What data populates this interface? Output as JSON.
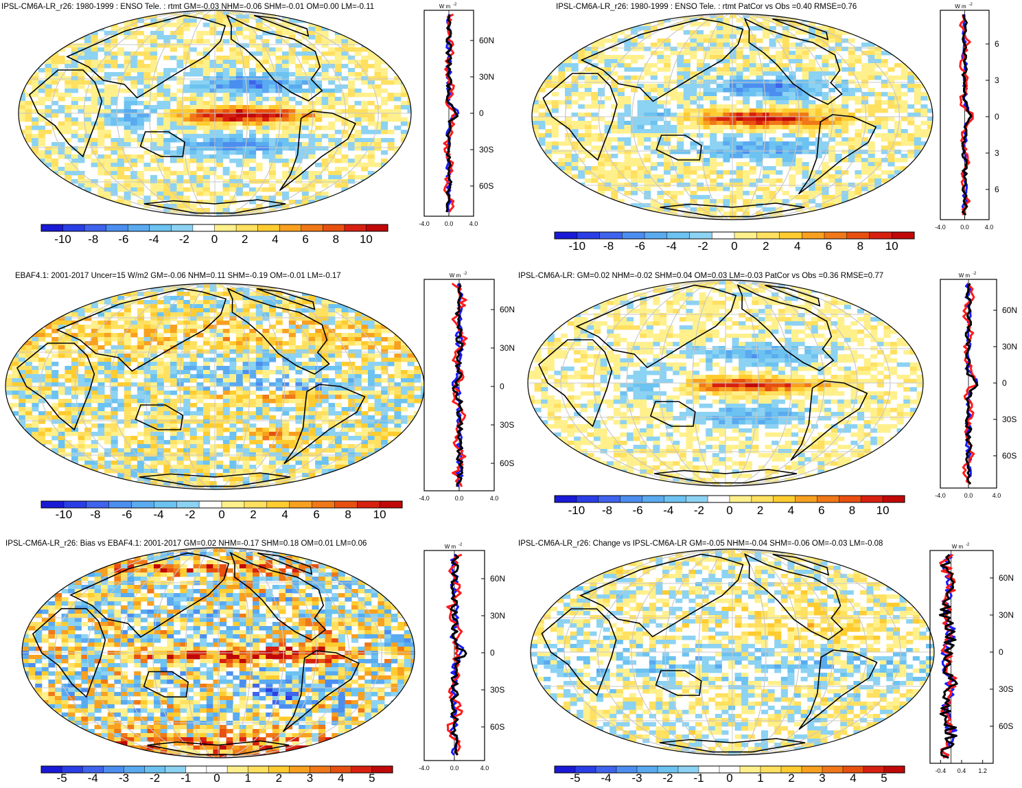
{
  "palette10": [
    "#1a1ad6",
    "#2a3ee6",
    "#3f63ec",
    "#4c8ef0",
    "#5aaaf0",
    "#6cc2f0",
    "#8cd2f2",
    "#ffffff",
    "#fff08c",
    "#ffe060",
    "#ffcc30",
    "#f8a020",
    "#f07818",
    "#e85010",
    "#d82010",
    "#c00808"
  ],
  "palette5": [
    "#1a1ad6",
    "#2a3ee6",
    "#3f63ec",
    "#4c8ef0",
    "#5aaaf0",
    "#6cc2f0",
    "#8cd2f2",
    "#ffffff",
    "#ffffff",
    "#fff08c",
    "#ffe060",
    "#ffcc30",
    "#f8a020",
    "#f07818",
    "#e85010",
    "#d82010",
    "#c00808"
  ],
  "line_colors": {
    "model": "#1a1aff",
    "obs": "#ff1a1a",
    "mean": "#000000"
  },
  "panels": [
    {
      "title": "IPSL-CM6A-LR_r26: 1980-1999 : ENSO Tele. : rtmt GM=-0.03 NHM=-0.06 SHM=-0.01 OM=0.00 LM=-0.11",
      "center": "pacific",
      "colorbar_labels": [
        "-10",
        "-8",
        "-6",
        "-4",
        "-2",
        "0",
        "2",
        "4",
        "6",
        "8",
        "10"
      ],
      "zonal": {
        "unit_top": "W m",
        "unit_exp": "-2",
        "lat_labels": [
          "60N",
          "30N",
          "0",
          "30S",
          "60S"
        ],
        "x_ticks": [
          "-4.0",
          "0.0",
          "4.0"
        ],
        "x_range": [
          -4,
          4
        ]
      }
    },
    {
      "title": "IPSL-CM6A-LR_r26: 1980-1999 : ENSO Tele. : rtmt PatCor vs Obs =0.40 RMSE=0.76",
      "center": "pacific",
      "colorbar_labels": [
        "-10",
        "-8",
        "-6",
        "-4",
        "-2",
        "0",
        "2",
        "4",
        "6",
        "8",
        "10"
      ],
      "zonal": {
        "unit_top": "W m",
        "unit_exp": "-2",
        "lat_labels": [
          "6",
          "3",
          "0",
          "3",
          "6"
        ],
        "x_ticks": [
          "-4.0",
          "0.0",
          "4.0"
        ],
        "x_range": [
          -4,
          4
        ]
      }
    },
    {
      "title": "EBAF4.1: 2001-2017 Uncer=15 W/m2 GM=-0.06 NHM=0.11 SHM=-0.19 OM=-0.01 LM=-0.17",
      "center": "pacific",
      "colorbar_labels": [
        "-10",
        "-8",
        "-6",
        "-4",
        "-2",
        "0",
        "2",
        "4",
        "6",
        "8",
        "10"
      ],
      "zonal": {
        "unit_top": "W m",
        "unit_exp": "-2",
        "lat_labels": [
          "60N",
          "30N",
          "0",
          "30S",
          "60S"
        ],
        "x_ticks": [
          "-4.0",
          "0.0",
          "4.0"
        ],
        "x_range": [
          -4,
          4
        ]
      }
    },
    {
      "title": "IPSL-CM6A-LR: GM=0.02 NHM=-0.02 SHM=0.04 OM=0.03 LM=-0.03 PatCor vs Obs =0.36 RMSE=0.77",
      "center": "pacific",
      "colorbar_labels": [
        "-10",
        "-8",
        "-6",
        "-4",
        "-2",
        "0",
        "2",
        "4",
        "6",
        "8",
        "10"
      ],
      "zonal": {
        "unit_top": "W m",
        "unit_exp": "-2",
        "lat_labels": [
          "60N",
          "30N",
          "0",
          "30S",
          "60S"
        ],
        "x_ticks": [
          "-4.0",
          "0.0",
          "4.0"
        ],
        "x_range": [
          -4,
          4
        ]
      }
    },
    {
      "title": "IPSL-CM6A-LR_r26: Bias vs EBAF4.1: 2001-2017 GM=0.02 NHM=-0.17 SHM=0.18 OM=0.01 LM=0.06",
      "center": "pacific",
      "colorbar_labels": [
        "-5",
        "-4",
        "-3",
        "-2",
        "-1",
        "0",
        "1",
        "2",
        "3",
        "4",
        "5"
      ],
      "zonal": {
        "unit_top": "W m",
        "unit_exp": "-2",
        "lat_labels": [
          "60N",
          "30N",
          "0",
          "30S",
          "60S"
        ],
        "x_ticks": [
          "-4.0",
          "0.0",
          "4.0"
        ],
        "x_range": [
          -4,
          4
        ]
      }
    },
    {
      "title": "IPSL-CM6A-LR_r26: Change vs IPSL-CM6A-LR GM=-0.05 NHM=-0.04 SHM=-0.06 OM=-0.03 LM=-0.08",
      "center": "pacific",
      "colorbar_labels": [
        "-5",
        "-4",
        "-3",
        "-2",
        "-1",
        "0",
        "1",
        "2",
        "3",
        "4",
        "5"
      ],
      "zonal": {
        "unit_top": "W m",
        "unit_exp": "-2",
        "lat_labels": [
          "60N",
          "30N",
          "0",
          "30S",
          "60S"
        ],
        "x_ticks": [
          "-0.4",
          "0.4",
          "1.2"
        ],
        "x_range": [
          -0.8,
          1.6
        ]
      }
    }
  ],
  "chart_data": [
    {
      "type": "heatmap",
      "title": "IPSL-CM6A-LR_r26: 1980-1999 : ENSO Tele. : rtmt GM=-0.03 NHM=-0.06 SHM=-0.01 OM=0.00 LM=-0.11",
      "colorbar": [
        -10,
        -8,
        -6,
        -4,
        -2,
        0,
        2,
        4,
        6,
        8,
        10
      ],
      "zonal_mean": {
        "xlim": [
          -4,
          4
        ],
        "yticks": [
          "60N",
          "30N",
          "0",
          "30S",
          "60S"
        ]
      }
    },
    {
      "type": "heatmap",
      "title": "IPSL-CM6A-LR_r26: 1980-1999 : ENSO Tele. : rtmt PatCor vs Obs =0.40 RMSE=0.76",
      "colorbar": [
        -10,
        -8,
        -6,
        -4,
        -2,
        0,
        2,
        4,
        6,
        8,
        10
      ],
      "zonal_mean": {
        "xlim": [
          -4,
          4
        ]
      }
    },
    {
      "type": "heatmap",
      "title": "EBAF4.1: 2001-2017 Uncer=15 W/m2 GM=-0.06 NHM=0.11 SHM=-0.19 OM=-0.01 LM=-0.17",
      "colorbar": [
        -10,
        -8,
        -6,
        -4,
        -2,
        0,
        2,
        4,
        6,
        8,
        10
      ],
      "zonal_mean": {
        "xlim": [
          -4,
          4
        ]
      }
    },
    {
      "type": "heatmap",
      "title": "IPSL-CM6A-LR: GM=0.02 NHM=-0.02 SHM=0.04 OM=0.03 LM=-0.03 PatCor vs Obs =0.36 RMSE=0.77",
      "colorbar": [
        -10,
        -8,
        -6,
        -4,
        -2,
        0,
        2,
        4,
        6,
        8,
        10
      ],
      "zonal_mean": {
        "xlim": [
          -4,
          4
        ]
      }
    },
    {
      "type": "heatmap",
      "title": "IPSL-CM6A-LR_r26: Bias vs EBAF4.1: 2001-2017 GM=0.02 NHM=-0.17 SHM=0.18 OM=0.01 LM=0.06",
      "colorbar": [
        -5,
        -4,
        -3,
        -2,
        -1,
        0,
        1,
        2,
        3,
        4,
        5
      ],
      "zonal_mean": {
        "xlim": [
          -4,
          4
        ]
      }
    },
    {
      "type": "heatmap",
      "title": "IPSL-CM6A-LR_r26: Change vs IPSL-CM6A-LR GM=-0.05 NHM=-0.04 SHM=-0.06 OM=-0.03 LM=-0.08",
      "colorbar": [
        -5,
        -4,
        -3,
        -2,
        -1,
        0,
        1,
        2,
        3,
        4,
        5
      ],
      "zonal_mean": {
        "xlim": [
          -0.8,
          1.6
        ],
        "xticks": [
          -0.4,
          0.4,
          1.2
        ]
      }
    }
  ]
}
